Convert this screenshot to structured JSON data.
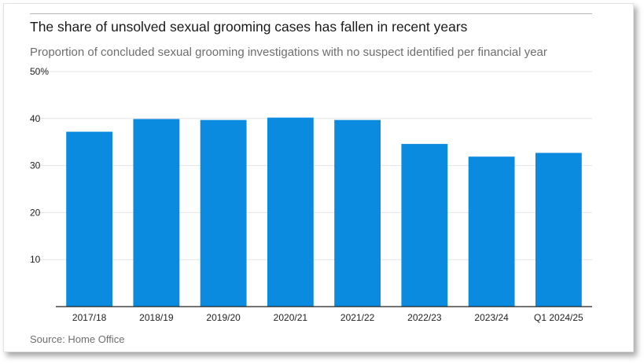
{
  "title": "The share of unsolved sexual grooming cases has fallen in recent years",
  "subtitle": "Proportion of concluded sexual grooming investigations with no suspect identified per financial year",
  "source": "Source: Home Office",
  "colors": {
    "bar": "#0a8be0",
    "grid": "#e4e4e4",
    "axis": "#222222"
  },
  "chart_data": {
    "type": "bar",
    "title": "The share of unsolved sexual grooming cases has fallen in recent years",
    "subtitle": "Proportion of concluded sexual grooming investigations with no suspect identified per financial year",
    "xlabel": "",
    "ylabel": "",
    "categories": [
      "2017/18",
      "2018/19",
      "2019/20",
      "2020/21",
      "2021/22",
      "2022/23",
      "2023/24",
      "Q1 2024/25"
    ],
    "values": [
      37.2,
      39.9,
      39.7,
      40.2,
      39.7,
      34.6,
      31.9,
      32.7
    ],
    "ylim": [
      0,
      50
    ],
    "yticks": [
      10,
      20,
      30,
      40,
      50
    ],
    "ytick_labels": [
      "10",
      "20",
      "30",
      "40",
      "50%"
    ],
    "grid": true,
    "legend": "none"
  }
}
